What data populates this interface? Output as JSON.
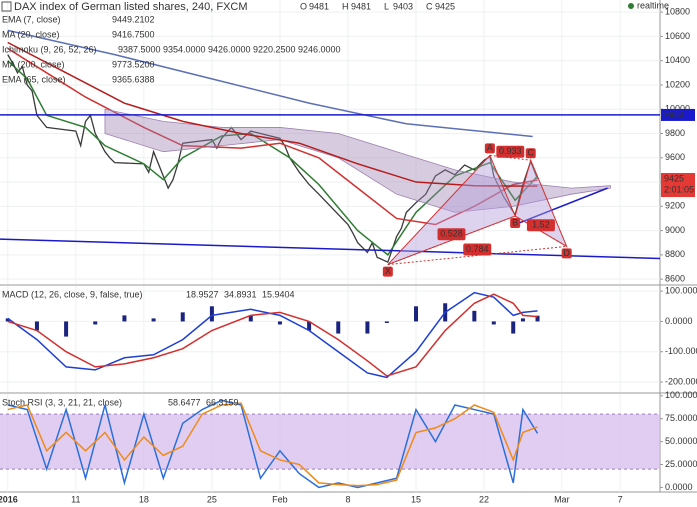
{
  "chart_data": [
    {
      "type": "line",
      "title": "DAX index of German listed shares, 240, FXCM",
      "ohlc": [
        {
          "label": "O",
          "value": 9481
        },
        {
          "label": "H",
          "value": 9481
        },
        {
          "label": "L",
          "value": 9403
        },
        {
          "label": "C",
          "value": 9425
        }
      ],
      "status": "realtime",
      "xlim": [
        3.2,
        71.1
      ],
      "xticks": [
        {
          "value": 4,
          "label": "2016"
        },
        11,
        18,
        25,
        {
          "value": 32,
          "label": "Feb"
        },
        {
          "value": 39,
          "label": "8"
        },
        {
          "value": 46,
          "label": "15"
        },
        {
          "value": 53,
          "label": "22"
        },
        {
          "value": 61,
          "label": "Mar"
        },
        {
          "value": 67,
          "label": "7"
        }
      ],
      "ylim": [
        8560,
        10900
      ],
      "yticks": [
        8600,
        8800,
        9000,
        9200,
        9400,
        9600,
        9800,
        10000,
        10200,
        10400,
        10600,
        10800
      ],
      "grid": true,
      "series": [
        {
          "style": "line",
          "color": "#3a3a3a",
          "x": [
            4,
            4.5,
            5,
            5.5,
            6,
            6.5,
            7,
            7.5,
            8,
            11,
            11.5,
            12,
            12.5,
            13,
            14,
            14.5,
            15,
            18,
            18.5,
            19,
            20,
            20.5,
            21,
            21.5,
            22,
            25,
            25.5,
            26,
            27,
            27.5,
            28,
            29,
            32,
            32.5,
            33,
            34,
            35,
            36,
            39,
            39.5,
            40,
            41,
            41.5,
            42,
            43.1,
            44,
            44.5,
            45,
            46,
            47,
            48,
            49,
            50,
            51,
            52,
            53,
            53.6,
            54,
            55,
            56.2,
            57,
            57.8,
            58.5
          ],
          "values": [
            10450,
            10380,
            10300,
            10350,
            10200,
            10150,
            9950,
            9900,
            9850,
            9820,
            9700,
            9900,
            9950,
            9800,
            9650,
            9600,
            9560,
            9550,
            9480,
            9650,
            9450,
            9350,
            9420,
            9550,
            9720,
            9750,
            9680,
            9760,
            9850,
            9800,
            9750,
            9820,
            9760,
            9700,
            9600,
            9480,
            9380,
            9300,
            9050,
            8980,
            8900,
            8820,
            8900,
            8780,
            8740,
            8950,
            9020,
            9150,
            9230,
            9300,
            9450,
            9500,
            9460,
            9540,
            9500,
            9580,
            9610,
            9450,
            9280,
            9130,
            9380,
            9570,
            9425
          ]
        },
        {
          "style": "line",
          "name": "EMA (7, close)",
          "readout": [
            "9449.2102"
          ],
          "readout_colors": [
            "#2e7d32"
          ],
          "color": "#2e7d32",
          "x": [
            4,
            6,
            8,
            12,
            14,
            18,
            20,
            22,
            26,
            29,
            33,
            36,
            40,
            43.1,
            46,
            50,
            53.6,
            56.2,
            58.5
          ],
          "values": [
            10400,
            10250,
            9950,
            9850,
            9700,
            9550,
            9420,
            9600,
            9780,
            9800,
            9600,
            9380,
            9000,
            8800,
            9150,
            9450,
            9560,
            9250,
            9449
          ]
        },
        {
          "style": "line",
          "name": "MA (20, close)",
          "readout": [
            "9416.7500"
          ],
          "readout_colors": [
            "#c62828"
          ],
          "color": "#d32f2f",
          "x": [
            4,
            8,
            12,
            18,
            22,
            28,
            32,
            36,
            40,
            44,
            48,
            52,
            56,
            58.5
          ],
          "values": [
            10500,
            10300,
            10100,
            9850,
            9700,
            9680,
            9720,
            9600,
            9350,
            9100,
            9050,
            9200,
            9380,
            9417
          ]
        },
        {
          "style": "cloud",
          "name": "Ichimoku (9, 26, 52, 26)",
          "readout": [
            "9387.5000",
            "9354.0000",
            "9426.0000",
            "9220.2500",
            "9246.0000"
          ],
          "readout_colors": [
            "#1e5bd6",
            "#c62828",
            "#2e7d32",
            "#2e7d32",
            "#c62828"
          ],
          "color": "#9c7fb0",
          "x": [
            14,
            20,
            26,
            32,
            38,
            44,
            50,
            56,
            62,
            66
          ],
          "upper": [
            10000,
            9900,
            9850,
            9850,
            9800,
            9650,
            9500,
            9400,
            9350,
            9370
          ],
          "lower": [
            9800,
            9650,
            9700,
            9750,
            9600,
            9300,
            9150,
            9200,
            9300,
            9350
          ]
        },
        {
          "style": "line",
          "name": "MA (200, close)",
          "readout": [
            "9773.5200"
          ],
          "readout_colors": [
            "#1e5bd6"
          ],
          "color": "#5c6fb5",
          "x": [
            4,
            15,
            25,
            35,
            45,
            58
          ],
          "values": [
            10650,
            10450,
            10250,
            10050,
            9880,
            9775
          ]
        },
        {
          "style": "line",
          "name": "EMA (65, close)",
          "readout": [
            "9365.6388"
          ],
          "readout_colors": [
            "#c62828"
          ],
          "color": "#b71c1c",
          "x": [
            4,
            10,
            16,
            22,
            28,
            34,
            40,
            46,
            52,
            58.5
          ],
          "values": [
            10550,
            10300,
            10050,
            9900,
            9800,
            9720,
            9550,
            9400,
            9370,
            9366
          ]
        }
      ],
      "hline": {
        "value": 9953,
        "color": "#1a1acc"
      },
      "price_tag": {
        "value": 9425,
        "countdown": "2:01:05",
        "color": "#e53935"
      },
      "trendlines": [
        {
          "x": [
            3.2,
            71.1
          ],
          "y": [
            8930,
            8770
          ],
          "color": "#1a1acc"
        },
        {
          "x": [
            56.2,
            65.7
          ],
          "y": [
            9050,
            9350
          ],
          "color": "#1a1acc"
        }
      ],
      "pattern": {
        "color": "#d32f2f",
        "points": [
          {
            "label": "X",
            "x": 43.1,
            "y": 8720
          },
          {
            "label": "A",
            "x": 53.6,
            "y": 9620
          },
          {
            "label": "B",
            "x": 56.2,
            "y": 9120
          },
          {
            "label": "C",
            "x": 57.8,
            "y": 9580
          },
          {
            "label": "D",
            "x": 61.5,
            "y": 8870
          }
        ],
        "ratios": [
          "0.528",
          "0.784",
          "0.933",
          "1.52"
        ]
      }
    },
    {
      "type": "line",
      "title": "MACD (12, 26, close, 9, false, true)",
      "readout": [
        "18.9527",
        "34.8931",
        "15.9404"
      ],
      "readout_colors": [
        "#1e5bd6",
        "#c62828",
        "#1a237e"
      ],
      "ylim": [
        -233,
        117
      ],
      "yticks": [
        {
          "value": -200,
          "label": "-200.0000"
        },
        {
          "value": -100,
          "label": "-100.0000"
        },
        {
          "value": 0,
          "label": "0.0000"
        },
        {
          "value": 100,
          "label": "100.0000"
        }
      ],
      "series": [
        {
          "style": "histogram",
          "color": "#1a237e",
          "x": [
            4,
            7,
            10,
            13,
            16,
            19,
            22,
            25,
            29,
            32,
            35,
            38,
            41,
            43,
            46,
            49,
            52,
            54,
            56,
            57,
            58.5
          ],
          "values": [
            10,
            -30,
            -50,
            -10,
            20,
            10,
            30,
            50,
            20,
            -10,
            -30,
            -40,
            -40,
            -5,
            50,
            60,
            35,
            -10,
            -40,
            10,
            19
          ]
        },
        {
          "style": "line",
          "color": "#1e3fd6",
          "x": [
            4,
            7,
            10,
            13,
            16,
            19,
            22,
            25,
            29,
            32,
            35,
            38,
            41,
            43,
            46,
            49,
            52,
            54,
            56,
            57,
            58.5
          ],
          "values": [
            10,
            -60,
            -150,
            -160,
            -120,
            -110,
            -60,
            20,
            40,
            20,
            -30,
            -100,
            -170,
            -185,
            -100,
            30,
            95,
            80,
            20,
            30,
            35
          ]
        },
        {
          "style": "line",
          "color": "#d32f2f",
          "x": [
            4,
            7,
            10,
            13,
            16,
            19,
            22,
            25,
            29,
            32,
            35,
            38,
            41,
            43,
            46,
            49,
            52,
            54,
            56,
            57,
            58.5
          ],
          "values": [
            0,
            -30,
            -100,
            -150,
            -140,
            -120,
            -90,
            -30,
            20,
            30,
            0,
            -60,
            -130,
            -180,
            -150,
            -30,
            60,
            90,
            60,
            20,
            16
          ]
        }
      ]
    },
    {
      "type": "line",
      "title": "Stoch RSI (3, 3, 21, 21, close)",
      "readout": [
        "58.6477",
        "66.3159"
      ],
      "readout_colors": [
        "#1e5bd6",
        "#ef8a17"
      ],
      "ylim": [
        -5,
        102
      ],
      "yticks": [
        {
          "value": 0,
          "label": "0.0000"
        },
        {
          "value": 25,
          "label": "25.0000"
        },
        {
          "value": 50,
          "label": "50.0000"
        },
        {
          "value": 75,
          "label": "75.0000"
        },
        {
          "value": 100,
          "label": "100.0000"
        }
      ],
      "band": [
        20,
        80
      ],
      "band_color": "#d4b8ec",
      "series": [
        {
          "style": "line",
          "color": "#2a6fdb",
          "x": [
            4,
            6,
            8,
            10,
            12,
            14,
            16,
            18,
            20,
            22,
            24,
            26,
            28,
            30,
            32,
            34,
            36,
            38,
            40,
            42,
            44,
            46,
            48,
            50,
            52,
            54,
            56,
            57,
            58.5
          ],
          "values": [
            90,
            85,
            20,
            85,
            10,
            90,
            5,
            80,
            10,
            70,
            85,
            95,
            90,
            10,
            40,
            15,
            0,
            5,
            0,
            5,
            10,
            85,
            50,
            90,
            85,
            80,
            5,
            85,
            59
          ]
        },
        {
          "style": "line",
          "color": "#ef8a17",
          "x": [
            4,
            6,
            8,
            10,
            12,
            14,
            16,
            18,
            20,
            22,
            24,
            26,
            28,
            30,
            32,
            34,
            36,
            38,
            40,
            42,
            44,
            46,
            48,
            50,
            52,
            54,
            56,
            57,
            58.5
          ],
          "values": [
            85,
            90,
            40,
            60,
            40,
            60,
            30,
            55,
            35,
            45,
            80,
            90,
            92,
            40,
            30,
            25,
            5,
            3,
            2,
            3,
            8,
            60,
            65,
            75,
            90,
            82,
            30,
            60,
            66
          ]
        }
      ]
    }
  ]
}
